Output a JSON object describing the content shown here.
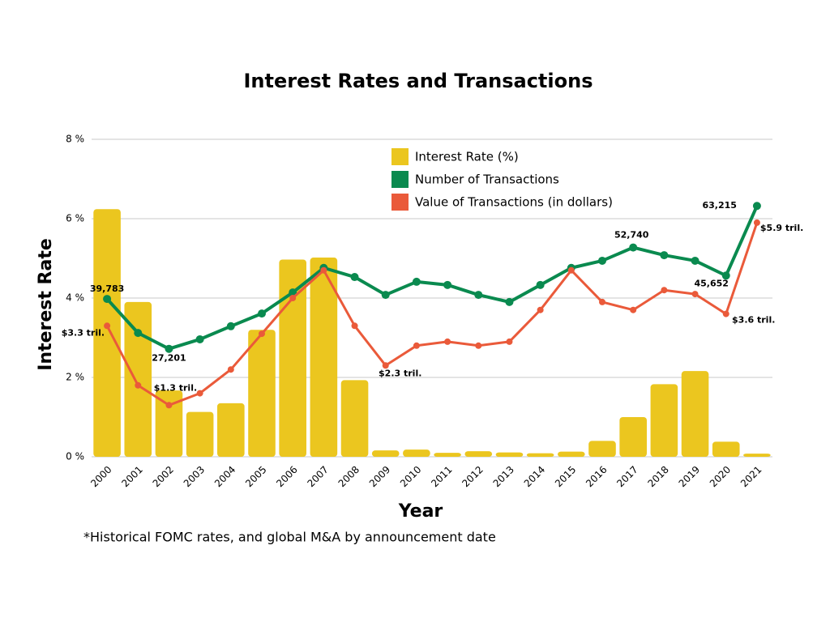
{
  "chart_data": {
    "type": "combo",
    "title": "Interest Rates and Transactions",
    "x_label": "Year",
    "y_label": "Interest Rate",
    "footnote": "*Historical FOMC rates, and global M&A by announcement date",
    "categories": [
      "2000",
      "2001",
      "2002",
      "2003",
      "2004",
      "2005",
      "2006",
      "2007",
      "2008",
      "2009",
      "2010",
      "2011",
      "2012",
      "2013",
      "2014",
      "2015",
      "2016",
      "2017",
      "2018",
      "2019",
      "2020",
      "2021"
    ],
    "ylim": [
      0,
      8
    ],
    "yticks": [
      {
        "value": 0,
        "label": "0 %"
      },
      {
        "value": 2,
        "label": "2 %"
      },
      {
        "value": 4,
        "label": "4 %"
      },
      {
        "value": 6,
        "label": "6 %"
      },
      {
        "value": 8,
        "label": "8 %"
      }
    ],
    "y2lim": [
      0,
      80000
    ],
    "y3lim": [
      0,
      8
    ],
    "grid": true,
    "legend": "top",
    "series": [
      {
        "name": "Interest Rate (%)",
        "type": "bar",
        "color": "#ebc61f",
        "values": [
          6.24,
          3.9,
          1.67,
          1.13,
          1.35,
          3.2,
          4.97,
          5.02,
          1.93,
          0.16,
          0.18,
          0.1,
          0.14,
          0.11,
          0.09,
          0.13,
          0.4,
          1.0,
          1.83,
          2.16,
          0.38,
          0.08
        ]
      },
      {
        "name": "Number of Transactions",
        "type": "line",
        "axis": "y2",
        "color": "#0a8a4f",
        "values": [
          39783,
          31200,
          27201,
          29600,
          32900,
          36100,
          41400,
          47600,
          45300,
          40800,
          44100,
          43300,
          40800,
          39000,
          43300,
          47600,
          49400,
          52740,
          50800,
          49400,
          45652,
          63215
        ],
        "value_labels": [
          "39,783",
          null,
          "27,201",
          null,
          null,
          null,
          null,
          null,
          null,
          null,
          null,
          null,
          null,
          null,
          null,
          null,
          null,
          "52,740",
          null,
          null,
          "45,652",
          "63,215"
        ]
      },
      {
        "name": "Value of Transactions (in dollars)",
        "type": "line",
        "axis": "y3",
        "color": "#ea5a3a",
        "values": [
          3.3,
          1.8,
          1.3,
          1.6,
          2.2,
          3.1,
          4.0,
          4.7,
          3.3,
          2.3,
          2.8,
          2.9,
          2.8,
          2.9,
          3.7,
          4.7,
          3.9,
          3.7,
          4.2,
          4.1,
          3.6,
          5.9
        ],
        "value_labels": [
          "$3.3 tril.",
          null,
          "$1.3 tril.",
          null,
          null,
          null,
          null,
          null,
          null,
          "$2.3 tril.",
          null,
          null,
          null,
          null,
          null,
          null,
          null,
          null,
          null,
          null,
          "$3.6 tril.",
          "$5.9 tril."
        ]
      }
    ]
  }
}
